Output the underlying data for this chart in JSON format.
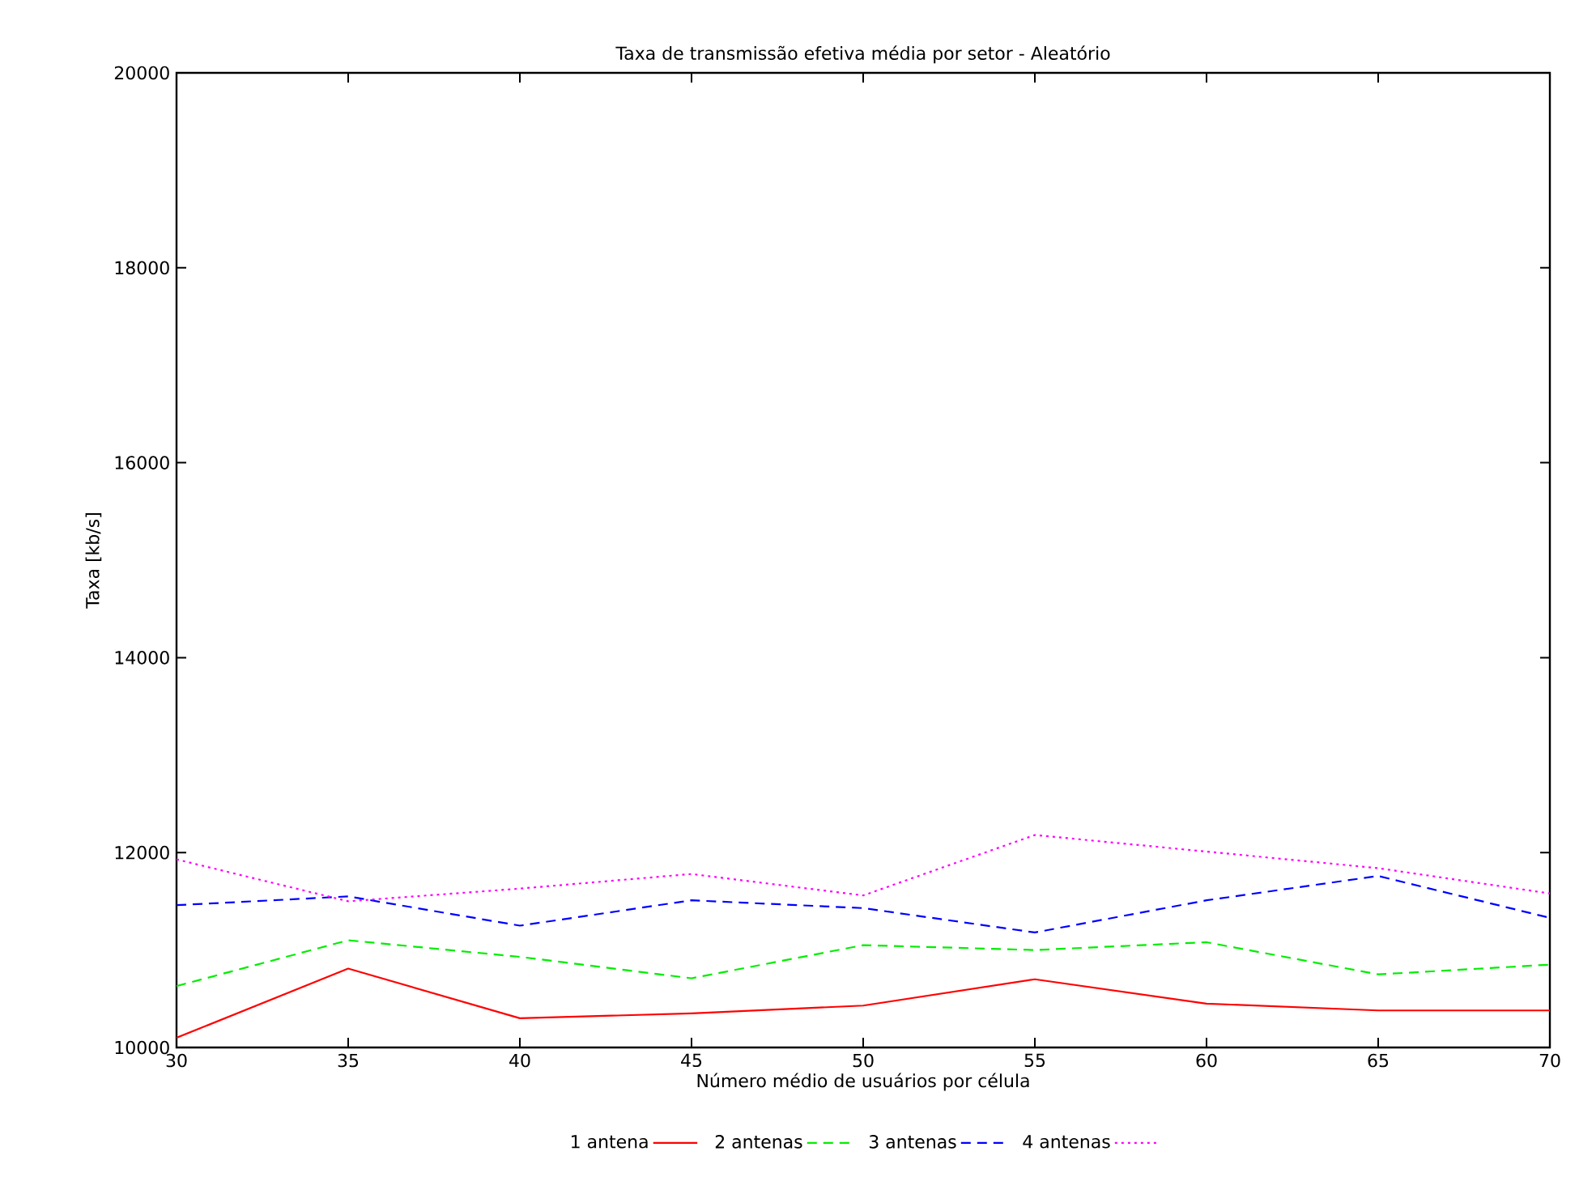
{
  "chart_data": {
    "type": "line",
    "title": "Taxa de transmissão efetiva média por setor - Aleatório",
    "xlabel": "Número médio de usuários por célula",
    "ylabel": "Taxa [kb/s]",
    "x": [
      30,
      35,
      40,
      45,
      50,
      55,
      60,
      65,
      70
    ],
    "series": [
      {
        "name": "1 antena",
        "color": "#ff0000",
        "line_style": "solid",
        "values": [
          10100,
          10810,
          10300,
          10350,
          10430,
          10700,
          10450,
          10380,
          10380
        ]
      },
      {
        "name": "2 antenas",
        "color": "#00ee00",
        "line_style": "dashed",
        "values": [
          10630,
          11100,
          10930,
          10710,
          11050,
          11000,
          11080,
          10750,
          10850
        ]
      },
      {
        "name": "3 antenas",
        "color": "#0000ff",
        "line_style": "dashed",
        "values": [
          11460,
          11550,
          11250,
          11510,
          11430,
          11180,
          11510,
          11760,
          11330
        ]
      },
      {
        "name": "4 antenas",
        "color": "#ff00ff",
        "line_style": "dotted",
        "values": [
          11930,
          11500,
          11630,
          11780,
          11560,
          12180,
          12010,
          11840,
          11580
        ]
      }
    ],
    "xlim": [
      30,
      70
    ],
    "ylim": [
      10000,
      20000
    ],
    "xticks": [
      30,
      35,
      40,
      45,
      50,
      55,
      60,
      65,
      70
    ],
    "yticks": [
      10000,
      12000,
      14000,
      16000,
      18000,
      20000
    ],
    "grid": false,
    "legend": "bottom",
    "marker": "none"
  }
}
